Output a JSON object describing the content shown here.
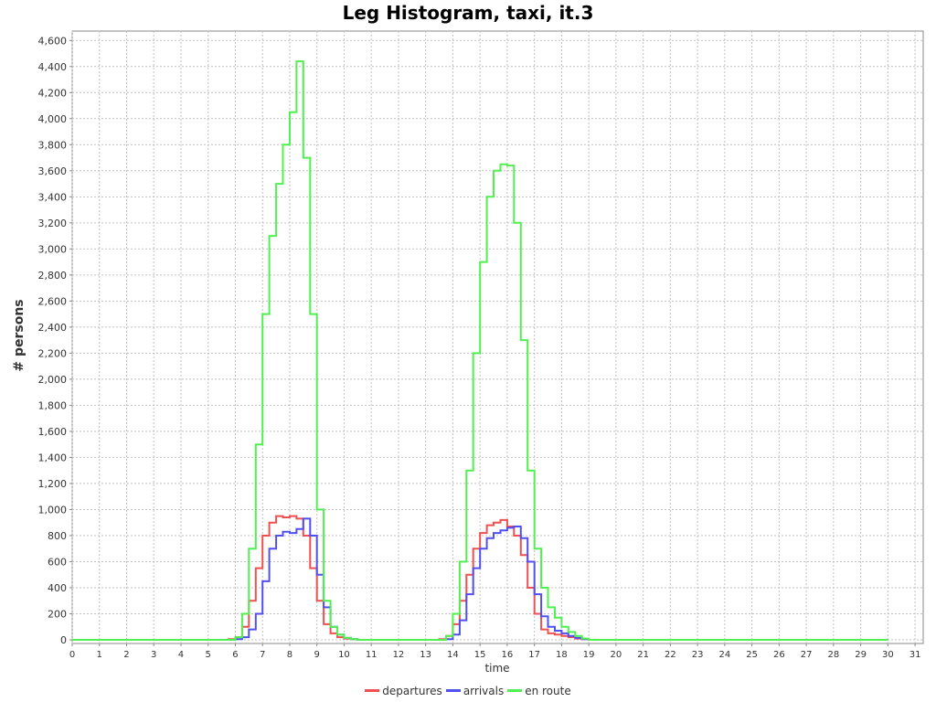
{
  "chart_data": {
    "type": "line",
    "title": "Leg Histogram, taxi, it.3",
    "xlabel": "time",
    "ylabel": "# persons",
    "xlim": [
      0,
      31.3
    ],
    "ylim": [
      0,
      4700
    ],
    "x_ticks": [
      "0",
      "1",
      "2",
      "3",
      "4",
      "5",
      "6",
      "7",
      "8",
      "9",
      "10",
      "11",
      "12",
      "13",
      "14",
      "15",
      "16",
      "17",
      "18",
      "19",
      "20",
      "21",
      "22",
      "23",
      "24",
      "25",
      "26",
      "27",
      "28",
      "29",
      "30",
      "31"
    ],
    "y_ticks": [
      "0",
      "200",
      "400",
      "600",
      "800",
      "1,000",
      "1,200",
      "1,400",
      "1,600",
      "1,800",
      "2,000",
      "2,200",
      "2,400",
      "2,600",
      "2,800",
      "3,000",
      "3,200",
      "3,400",
      "3,600",
      "3,800",
      "4,000",
      "4,200",
      "4,400",
      "4,600"
    ],
    "grid": true,
    "legend_position": "bottom",
    "bin_width_hours": 0.25,
    "x_end": 30.0,
    "series": [
      {
        "name": "departures",
        "color": "#f05050",
        "points": [
          [
            0,
            0
          ],
          [
            5.5,
            0
          ],
          [
            5.75,
            5
          ],
          [
            6.0,
            20
          ],
          [
            6.25,
            100
          ],
          [
            6.5,
            300
          ],
          [
            6.75,
            550
          ],
          [
            7.0,
            800
          ],
          [
            7.25,
            900
          ],
          [
            7.5,
            950
          ],
          [
            7.75,
            940
          ],
          [
            8.0,
            950
          ],
          [
            8.25,
            930
          ],
          [
            8.5,
            800
          ],
          [
            8.75,
            550
          ],
          [
            9.0,
            300
          ],
          [
            9.25,
            120
          ],
          [
            9.5,
            50
          ],
          [
            9.75,
            20
          ],
          [
            10.0,
            10
          ],
          [
            10.25,
            5
          ],
          [
            10.5,
            0
          ],
          [
            13.25,
            0
          ],
          [
            13.5,
            5
          ],
          [
            13.75,
            30
          ],
          [
            14.0,
            120
          ],
          [
            14.25,
            300
          ],
          [
            14.5,
            500
          ],
          [
            14.75,
            700
          ],
          [
            15.0,
            820
          ],
          [
            15.25,
            880
          ],
          [
            15.5,
            900
          ],
          [
            15.75,
            920
          ],
          [
            16.0,
            870
          ],
          [
            16.25,
            800
          ],
          [
            16.5,
            650
          ],
          [
            16.75,
            400
          ],
          [
            17.0,
            200
          ],
          [
            17.25,
            80
          ],
          [
            17.5,
            50
          ],
          [
            17.75,
            40
          ],
          [
            18.0,
            30
          ],
          [
            18.25,
            20
          ],
          [
            18.5,
            10
          ],
          [
            18.75,
            5
          ],
          [
            19.0,
            0
          ],
          [
            30.0,
            0
          ]
        ]
      },
      {
        "name": "arrivals",
        "color": "#5050f0",
        "points": [
          [
            0,
            0
          ],
          [
            5.75,
            0
          ],
          [
            6.0,
            5
          ],
          [
            6.25,
            20
          ],
          [
            6.5,
            80
          ],
          [
            6.75,
            200
          ],
          [
            7.0,
            450
          ],
          [
            7.25,
            700
          ],
          [
            7.5,
            800
          ],
          [
            7.75,
            830
          ],
          [
            8.0,
            820
          ],
          [
            8.25,
            850
          ],
          [
            8.5,
            930
          ],
          [
            8.75,
            800
          ],
          [
            9.0,
            500
          ],
          [
            9.25,
            250
          ],
          [
            9.5,
            100
          ],
          [
            9.75,
            40
          ],
          [
            10.0,
            15
          ],
          [
            10.25,
            5
          ],
          [
            10.5,
            0
          ],
          [
            13.5,
            0
          ],
          [
            13.75,
            5
          ],
          [
            14.0,
            40
          ],
          [
            14.25,
            150
          ],
          [
            14.5,
            350
          ],
          [
            14.75,
            550
          ],
          [
            15.0,
            700
          ],
          [
            15.25,
            780
          ],
          [
            15.5,
            820
          ],
          [
            15.75,
            840
          ],
          [
            16.0,
            860
          ],
          [
            16.25,
            870
          ],
          [
            16.5,
            780
          ],
          [
            16.75,
            600
          ],
          [
            17.0,
            350
          ],
          [
            17.25,
            180
          ],
          [
            17.5,
            100
          ],
          [
            17.75,
            70
          ],
          [
            18.0,
            50
          ],
          [
            18.25,
            30
          ],
          [
            18.5,
            15
          ],
          [
            18.75,
            5
          ],
          [
            19.0,
            0
          ],
          [
            30.0,
            0
          ]
        ]
      },
      {
        "name": "en route",
        "color": "#50f050",
        "points": [
          [
            0,
            0
          ],
          [
            5.75,
            0
          ],
          [
            6.0,
            20
          ],
          [
            6.25,
            200
          ],
          [
            6.5,
            700
          ],
          [
            6.75,
            1500
          ],
          [
            7.0,
            2500
          ],
          [
            7.25,
            3100
          ],
          [
            7.5,
            3500
          ],
          [
            7.75,
            3800
          ],
          [
            8.0,
            4050
          ],
          [
            8.25,
            4440
          ],
          [
            8.5,
            3700
          ],
          [
            8.75,
            2500
          ],
          [
            9.0,
            1000
          ],
          [
            9.25,
            300
          ],
          [
            9.5,
            100
          ],
          [
            9.75,
            40
          ],
          [
            10.0,
            15
          ],
          [
            10.25,
            5
          ],
          [
            10.5,
            0
          ],
          [
            13.5,
            0
          ],
          [
            13.75,
            30
          ],
          [
            14.0,
            200
          ],
          [
            14.25,
            600
          ],
          [
            14.5,
            1300
          ],
          [
            14.75,
            2200
          ],
          [
            15.0,
            2900
          ],
          [
            15.25,
            3400
          ],
          [
            15.5,
            3600
          ],
          [
            15.75,
            3650
          ],
          [
            16.0,
            3640
          ],
          [
            16.25,
            3200
          ],
          [
            16.5,
            2300
          ],
          [
            16.75,
            1300
          ],
          [
            17.0,
            700
          ],
          [
            17.25,
            400
          ],
          [
            17.5,
            250
          ],
          [
            17.75,
            170
          ],
          [
            18.0,
            100
          ],
          [
            18.25,
            60
          ],
          [
            18.5,
            30
          ],
          [
            18.75,
            10
          ],
          [
            19.0,
            0
          ],
          [
            30.0,
            0
          ]
        ]
      }
    ]
  }
}
